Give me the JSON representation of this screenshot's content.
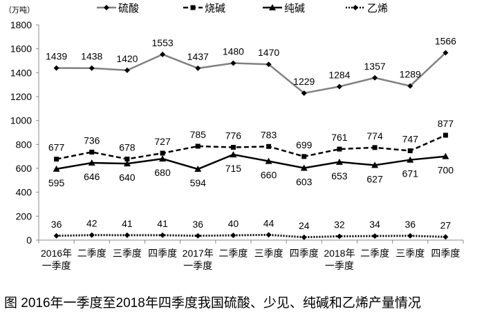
{
  "chart_data": {
    "type": "line",
    "title": "图 2016年一季度至2018年四季度我国硫酸、少见、纯碱和乙烯产量情况",
    "unit_label": "（万吨）",
    "ylim": [
      0,
      1800
    ],
    "yticks": [
      0,
      200,
      400,
      600,
      800,
      1000,
      1200,
      1400,
      1600,
      1800
    ],
    "categories": [
      [
        "2016年",
        "一季度"
      ],
      [
        "二季度"
      ],
      [
        "三季度"
      ],
      [
        "四季度"
      ],
      [
        "2017年",
        "一季度"
      ],
      [
        "二季度"
      ],
      [
        "三季度"
      ],
      [
        "四季度"
      ],
      [
        "2018年",
        "一季度"
      ],
      [
        "二季度"
      ],
      [
        "三季度"
      ],
      [
        "四季度"
      ]
    ],
    "legend_position": "top",
    "series": [
      {
        "name": "硫酸",
        "color": "#808080",
        "style": "solid",
        "marker": "diamond",
        "label_pos": "above",
        "values": [
          1439,
          1438,
          1420,
          1553,
          1437,
          1480,
          1470,
          1229,
          1284,
          1357,
          1289,
          1566
        ]
      },
      {
        "name": "烧碱",
        "color": "#000000",
        "style": "dashed",
        "marker": "square",
        "label_pos": "above",
        "values": [
          677,
          736,
          678,
          727,
          785,
          776,
          783,
          699,
          761,
          774,
          747,
          877
        ]
      },
      {
        "name": "纯碱",
        "color": "#000000",
        "style": "solid",
        "marker": "triangle",
        "label_pos": "below",
        "values": [
          595,
          646,
          640,
          680,
          594,
          715,
          660,
          603,
          653,
          627,
          671,
          700
        ]
      },
      {
        "name": "乙烯",
        "color": "#000000",
        "style": "dotted",
        "marker": "diamond",
        "label_pos": "above",
        "values": [
          36,
          42,
          41,
          41,
          36,
          40,
          44,
          24,
          32,
          34,
          36,
          27
        ]
      }
    ]
  }
}
